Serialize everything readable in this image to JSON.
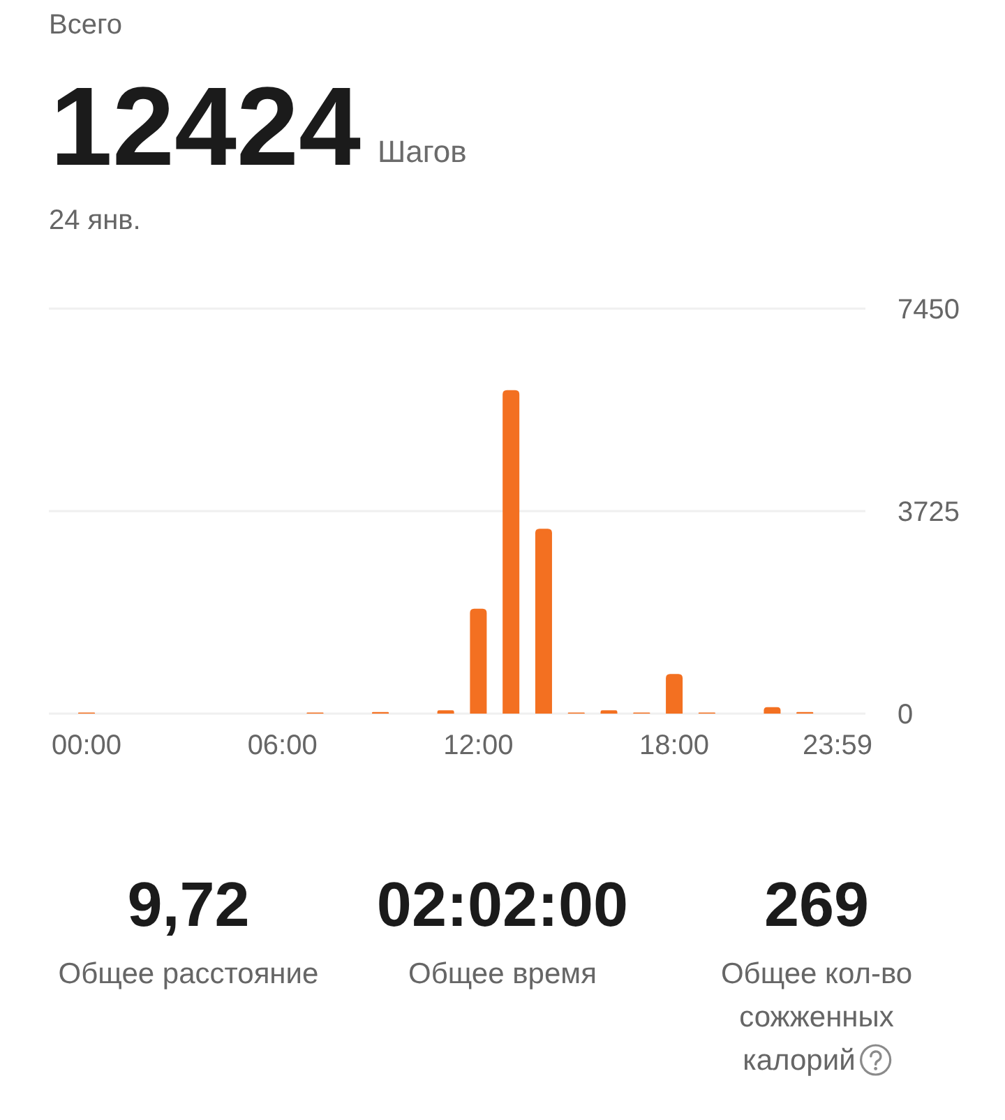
{
  "chart_data": {
    "type": "bar",
    "title": "Всего",
    "subtitle": "24 янв.",
    "categories": [
      "00:00",
      null,
      null,
      null,
      null,
      null,
      "06:00",
      null,
      null,
      null,
      null,
      null,
      "12:00",
      null,
      null,
      null,
      null,
      null,
      "18:00",
      null,
      null,
      null,
      null,
      "23:59"
    ],
    "values": [
      20,
      0,
      0,
      0,
      0,
      0,
      0,
      20,
      0,
      30,
      0,
      60,
      1930,
      5950,
      3400,
      20,
      60,
      20,
      730,
      20,
      0,
      120,
      30,
      0
    ],
    "color": "#f37021",
    "ylim": [
      0,
      7450
    ],
    "yticks": [
      0,
      3725,
      7450
    ],
    "grid": "y",
    "annotations": [
      "12424",
      "Шагов",
      "9,72",
      "Общее расстояние",
      "02:02:00",
      "Общее время",
      "269",
      "Общее кол-во сожженных калорий"
    ]
  }
}
